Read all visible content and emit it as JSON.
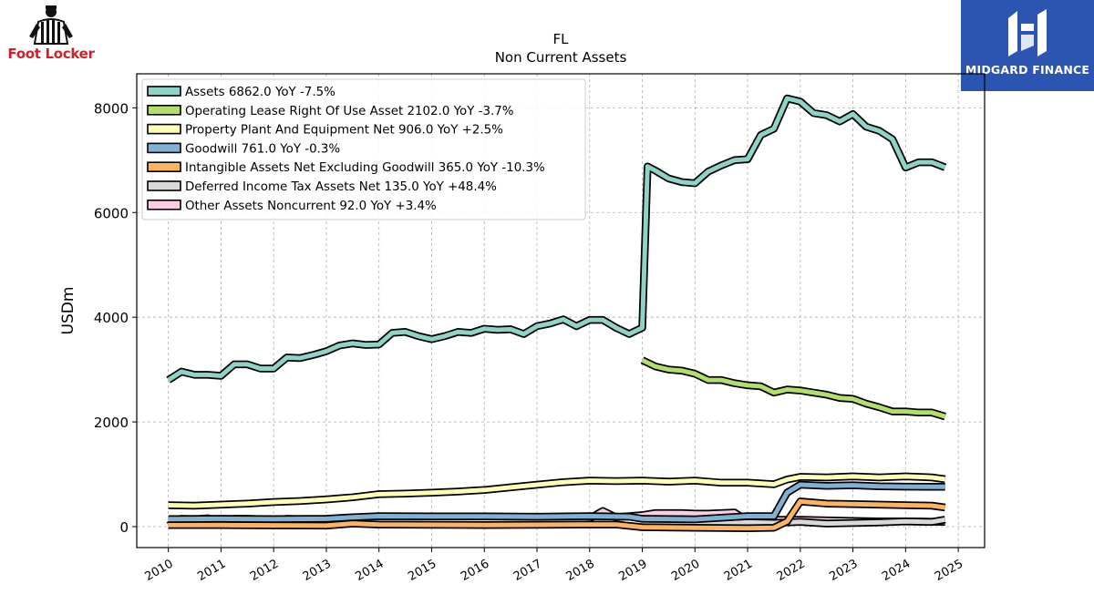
{
  "brand": {
    "left_logo_text": "Foot Locker",
    "right_logo_text": "MIDGARD FINANCE",
    "right_logo_color": "#2b55b0"
  },
  "chart_data": {
    "type": "line",
    "title": "FL",
    "subtitle": "Non Current  Assets",
    "ylabel": "USDm",
    "xlabel": "",
    "xlim": [
      2009.4,
      2025.5
    ],
    "ylim": [
      -400,
      8650
    ],
    "yticks": [
      0,
      2000,
      4000,
      6000,
      8000
    ],
    "xticks": [
      "2010",
      "2011",
      "2012",
      "2013",
      "2014",
      "2015",
      "2016",
      "2017",
      "2018",
      "2019",
      "2020",
      "2021",
      "2022",
      "2023",
      "2024",
      "2025"
    ],
    "grid": true,
    "legend_position": "top-left",
    "series": [
      {
        "name": "Assets  6862.0 YoY -7.5%",
        "color": "#8dd3c7",
        "x": [
          2010.0,
          2010.25,
          2010.5,
          2010.75,
          2011.0,
          2011.25,
          2011.5,
          2011.75,
          2012.0,
          2012.25,
          2012.5,
          2012.75,
          2013.0,
          2013.25,
          2013.5,
          2013.75,
          2014.0,
          2014.25,
          2014.5,
          2014.75,
          2015.0,
          2015.25,
          2015.5,
          2015.75,
          2016.0,
          2016.25,
          2016.5,
          2016.75,
          2017.0,
          2017.25,
          2017.5,
          2017.75,
          2018.0,
          2018.25,
          2018.5,
          2018.75,
          2019.0,
          2019.1,
          2019.25,
          2019.5,
          2019.75,
          2020.0,
          2020.25,
          2020.5,
          2020.75,
          2021.0,
          2021.25,
          2021.5,
          2021.75,
          2022.0,
          2022.25,
          2022.5,
          2022.75,
          2023.0,
          2023.25,
          2023.5,
          2023.75,
          2024.0,
          2024.25,
          2024.5,
          2024.75
        ],
        "values": [
          2800,
          2960,
          2900,
          2900,
          2880,
          3100,
          3100,
          3020,
          3020,
          3230,
          3220,
          3280,
          3350,
          3460,
          3500,
          3470,
          3480,
          3700,
          3720,
          3640,
          3580,
          3640,
          3720,
          3700,
          3780,
          3760,
          3770,
          3680,
          3830,
          3880,
          3960,
          3830,
          3950,
          3950,
          3800,
          3680,
          3800,
          6880,
          6800,
          6650,
          6580,
          6560,
          6780,
          6900,
          7000,
          7020,
          7480,
          7600,
          8180,
          8120,
          7900,
          7860,
          7740,
          7880,
          7640,
          7560,
          7400,
          6860,
          6960,
          6960,
          6862
        ]
      },
      {
        "name": "Operating Lease Right Of Use Asset  2102.0 YoY -3.7%",
        "color": "#b3de69",
        "x": [
          2019.0,
          2019.25,
          2019.5,
          2019.75,
          2020.0,
          2020.25,
          2020.5,
          2020.75,
          2021.0,
          2021.25,
          2021.5,
          2021.75,
          2022.0,
          2022.25,
          2022.5,
          2022.75,
          2023.0,
          2023.25,
          2023.5,
          2023.75,
          2024.0,
          2024.25,
          2024.5,
          2024.75
        ],
        "values": [
          3180,
          3060,
          3000,
          2980,
          2920,
          2800,
          2800,
          2740,
          2700,
          2680,
          2560,
          2620,
          2600,
          2560,
          2520,
          2460,
          2440,
          2350,
          2280,
          2200,
          2200,
          2180,
          2180,
          2102
        ]
      },
      {
        "name": "Property Plant And Equipment Net  906.0 YoY +2.5%",
        "color": "#ffffb3",
        "x": [
          2010.0,
          2010.5,
          2011.0,
          2011.5,
          2012.0,
          2012.5,
          2013.0,
          2013.5,
          2014.0,
          2014.5,
          2015.0,
          2015.5,
          2016.0,
          2016.5,
          2017.0,
          2017.5,
          2018.0,
          2018.5,
          2019.0,
          2019.5,
          2020.0,
          2020.5,
          2021.0,
          2021.5,
          2021.75,
          2022.0,
          2022.5,
          2023.0,
          2023.5,
          2024.0,
          2024.5,
          2024.75
        ],
        "values": [
          410,
          400,
          420,
          440,
          470,
          490,
          520,
          560,
          620,
          630,
          650,
          670,
          700,
          750,
          800,
          850,
          880,
          870,
          880,
          860,
          880,
          840,
          840,
          810,
          900,
          950,
          940,
          960,
          940,
          960,
          940,
          906
        ]
      },
      {
        "name": "Goodwill  761.0 YoY -0.3%",
        "color": "#80b1d3",
        "x": [
          2010.0,
          2011.0,
          2012.0,
          2013.0,
          2013.5,
          2014.0,
          2015.0,
          2016.0,
          2017.0,
          2018.0,
          2018.75,
          2019.0,
          2020.0,
          2021.0,
          2021.5,
          2021.75,
          2022.0,
          2022.5,
          2023.0,
          2023.5,
          2024.0,
          2024.75
        ],
        "values": [
          145,
          150,
          145,
          150,
          180,
          200,
          195,
          195,
          190,
          200,
          190,
          150,
          140,
          200,
          200,
          650,
          800,
          780,
          790,
          770,
          765,
          761
        ]
      },
      {
        "name": "Intangible Assets Net Excluding Goodwill  365.0 YoY -10.3%",
        "color": "#fdb462",
        "x": [
          2010.0,
          2011.0,
          2012.0,
          2013.0,
          2013.5,
          2014.0,
          2015.0,
          2016.0,
          2017.0,
          2018.0,
          2018.5,
          2019.0,
          2020.0,
          2021.0,
          2021.5,
          2021.75,
          2022.0,
          2022.5,
          2023.0,
          2023.5,
          2024.0,
          2024.5,
          2024.75
        ],
        "values": [
          30,
          30,
          25,
          20,
          60,
          40,
          35,
          30,
          35,
          40,
          40,
          -10,
          -20,
          -30,
          -20,
          100,
          480,
          440,
          430,
          420,
          410,
          400,
          365
        ]
      },
      {
        "name": "Deferred Income Tax Assets Net  135.0 YoY +48.4%",
        "color": "#d9d9d9",
        "x": [
          2019.0,
          2019.5,
          2020.0,
          2020.5,
          2021.0,
          2021.5,
          2022.0,
          2022.5,
          2023.0,
          2023.5,
          2024.0,
          2024.5,
          2024.75
        ],
        "values": [
          90,
          80,
          70,
          60,
          80,
          70,
          90,
          60,
          70,
          80,
          100,
          90,
          135
        ]
      },
      {
        "name": "Other Assets Noncurrent  92.0 YoY +3.4%",
        "color": "#fccde5",
        "x": [
          2010.0,
          2010.25,
          2010.5,
          2010.75,
          2011.0,
          2011.25,
          2011.5,
          2011.75,
          2012.0,
          2012.25,
          2012.5,
          2012.75,
          2013.0,
          2013.25,
          2013.5,
          2013.75,
          2014.0,
          2014.5,
          2015.0,
          2015.5,
          2016.0,
          2016.5,
          2017.0,
          2017.5,
          2017.75,
          2018.0,
          2018.25,
          2018.5,
          2018.75,
          2019.0,
          2019.25,
          2019.5,
          2019.75,
          2020.0,
          2020.25,
          2020.5,
          2020.75,
          2021.0,
          2021.5,
          2021.75,
          2022.0,
          2022.5,
          2023.0,
          2023.5,
          2024.0,
          2024.5,
          2024.75
        ],
        "values": [
          20,
          150,
          140,
          160,
          40,
          150,
          150,
          140,
          100,
          150,
          140,
          130,
          120,
          150,
          150,
          170,
          110,
          100,
          100,
          110,
          120,
          110,
          120,
          140,
          150,
          160,
          300,
          180,
          200,
          220,
          260,
          260,
          260,
          250,
          250,
          260,
          270,
          110,
          130,
          130,
          130,
          120,
          110,
          100,
          100,
          95,
          92
        ]
      }
    ]
  }
}
